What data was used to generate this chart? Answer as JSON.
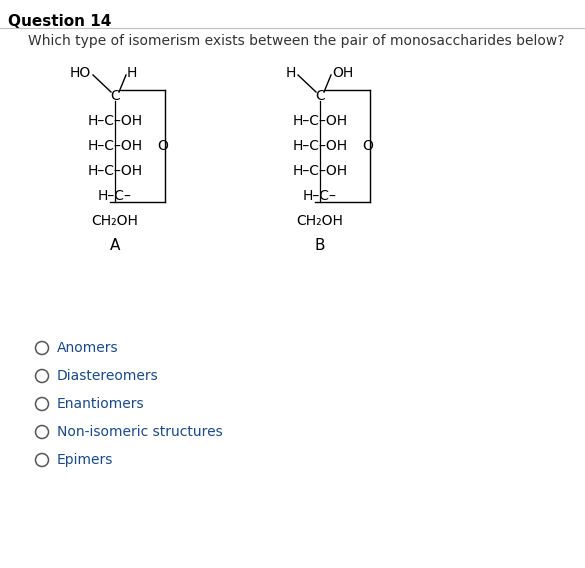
{
  "title": "Question 14",
  "question": "Which type of isomerism exists between the pair of monosaccharides below?",
  "background_color": "#ffffff",
  "title_fontsize": 11,
  "question_fontsize": 10,
  "mol_fontsize": 10,
  "options_fontsize": 10,
  "options": [
    "Anomers",
    "Diastereomers",
    "Enantiomers",
    "Non-isomeric structures",
    "Epimers"
  ],
  "option_text_color": "#1a4a8a",
  "mol_A": {
    "label": "A",
    "top_left": "HO",
    "top_right": "H"
  },
  "mol_B": {
    "label": "B",
    "top_left": "H",
    "top_right": "OH"
  },
  "row_labels": [
    "H–C–OH",
    "H–C–OH",
    "H–C–OH",
    "H–C–"
  ],
  "bottom_label": "CH₂OH"
}
